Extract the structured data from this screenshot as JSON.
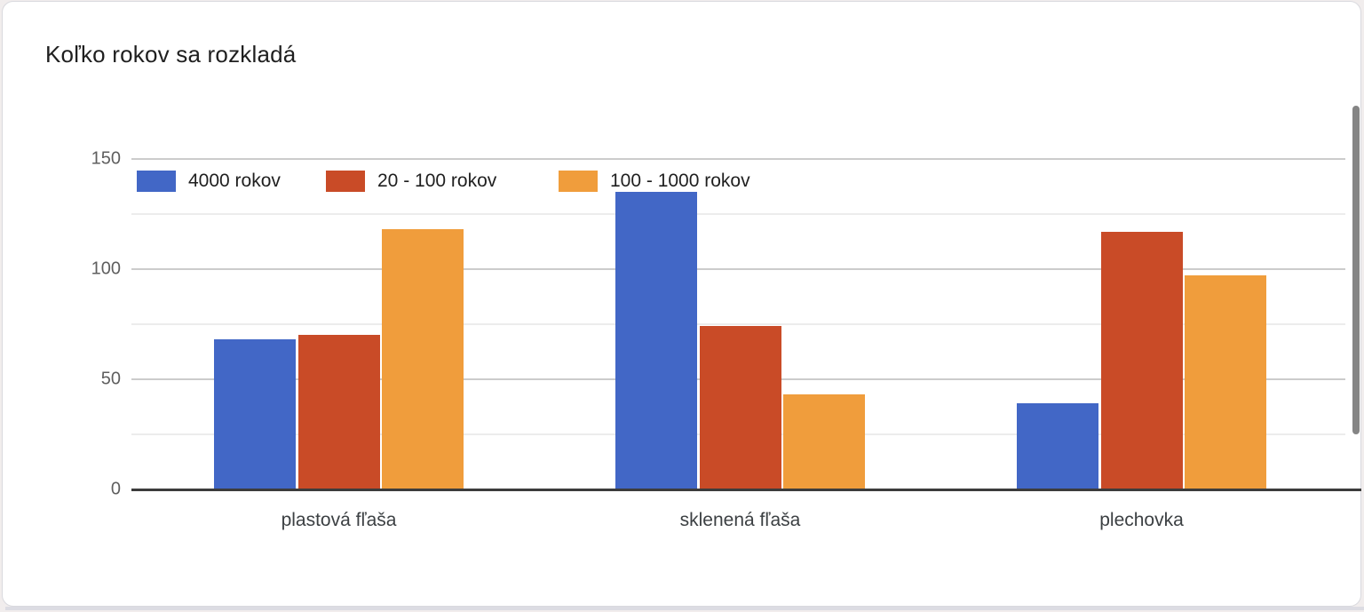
{
  "card": {
    "title": "Koľko rokov sa rozkladá"
  },
  "chart_data": {
    "type": "bar",
    "title": "Koľko rokov sa rozkladá",
    "categories": [
      "plastová fľaša",
      "sklenená fľaša",
      "plechovka"
    ],
    "series": [
      {
        "name": "4000 rokov",
        "color": "#4267C6",
        "values": [
          68,
          135,
          39
        ]
      },
      {
        "name": "20 - 100 rokov",
        "color": "#C94B27",
        "values": [
          70,
          74,
          117
        ]
      },
      {
        "name": "100 - 1000 rokov",
        "color": "#F09D3C",
        "values": [
          118,
          43,
          97
        ]
      }
    ],
    "xlabel": "",
    "ylabel": "",
    "ylim": [
      0,
      150
    ],
    "y_major_ticks": [
      0,
      50,
      100,
      150
    ],
    "y_minor_gridlines": [
      25,
      75,
      125
    ],
    "grid": "horizontal",
    "legend_position": "top-left"
  },
  "colors": {
    "page_background": "#f1eded",
    "card_background": "#ffffff",
    "card_border": "#d9d9de",
    "major_gridline": "#cccccc",
    "minor_gridline": "#ececec",
    "axis_line": "#3c3c3c",
    "tick_label": "#5f5f5f",
    "category_label": "#3c4043",
    "title_text": "#1f1f1f",
    "scrollbar_thumb": "#858585"
  },
  "scrollbar": {
    "present": "true"
  }
}
